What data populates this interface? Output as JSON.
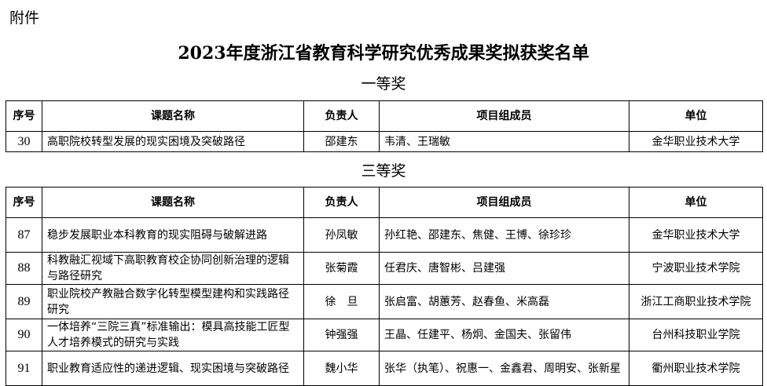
{
  "attachment_label": "附件",
  "title": "2023年度浙江省教育科学研究优秀成果奖拟获奖名单",
  "headers": [
    "序号",
    "课题名称",
    "负责人",
    "项目组成员",
    "单位"
  ],
  "first_prize": {
    "label": "一等奖",
    "rows": [
      {
        "no": "30",
        "topic": "高职院校转型发展的现实困境及突破路径",
        "leader": "邵建东",
        "members": "韦清、王瑞敏",
        "unit": "金华职业技术大学"
      }
    ]
  },
  "third_prize": {
    "label": "三等奖",
    "rows": [
      {
        "no": "87",
        "topic": "稳步发展职业本科教育的现实阻碍与破解进路",
        "leader": "孙凤敏",
        "members": "孙红艳、邵建东、焦健、王博、徐珍珍",
        "unit": "金华职业技术大学"
      },
      {
        "no": "88",
        "topic": "科教融汇视域下高职教育校企协同创新治理的逻辑与路径研究",
        "leader": "张菊霞",
        "members": "任君庆、唐智彬、吕建强",
        "unit": "宁波职业技术学院"
      },
      {
        "no": "89",
        "topic": "职业院校产教融合数字化转型模型建构和实践路径研究",
        "leader": "徐　旦",
        "members": "张启富、胡蕙芳、赵春鱼、米高磊",
        "unit": "浙江工商职业技术学院"
      },
      {
        "no": "90",
        "topic": "一体培养“三院三真”标准输出：模具高技能工匠型人才培养模式的研究与实践",
        "leader": "钟强强",
        "members": "王晶、任建平、杨炯、金国夫、张留伟",
        "unit": "台州科技职业学院"
      },
      {
        "no": "91",
        "topic": "职业教育适应性的递进逻辑、现实困境与突破路径",
        "leader": "魏小华",
        "members": "张华（执笔）、祝惠一、金鑫君、周明安、张新星",
        "unit": "衢州职业技术学院"
      }
    ]
  }
}
